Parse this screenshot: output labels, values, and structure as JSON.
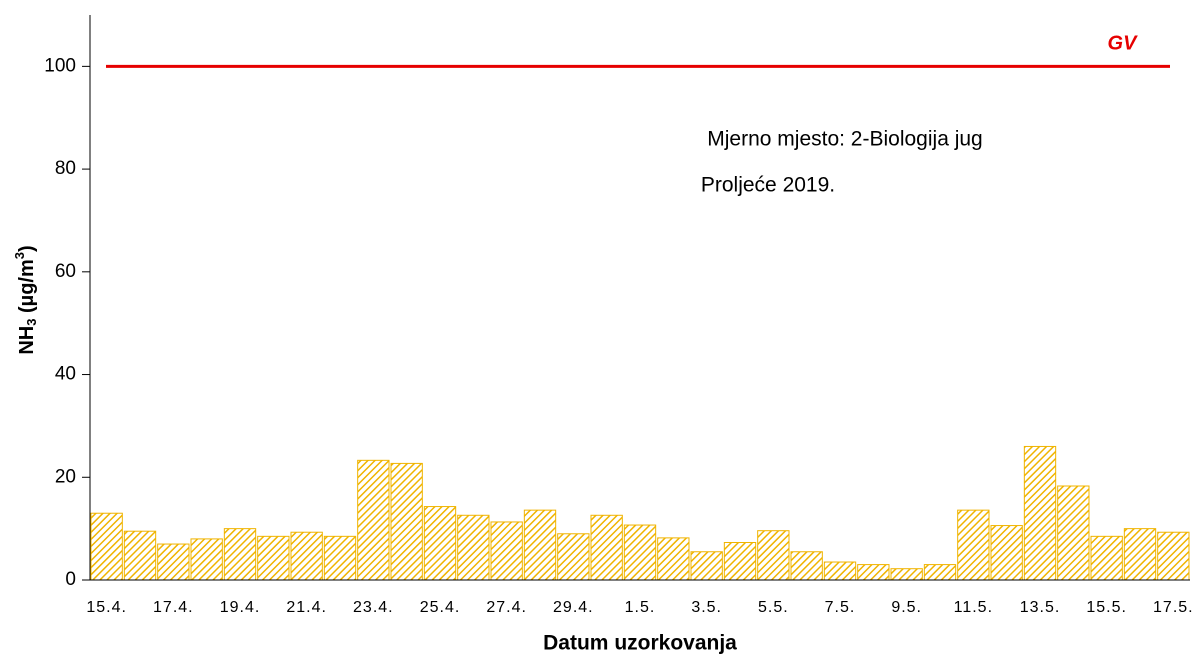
{
  "chart_data": {
    "type": "bar",
    "categories": [
      "15.4.",
      null,
      "17.4.",
      null,
      "19.4.",
      null,
      "21.4.",
      null,
      "23.4.",
      null,
      "25.4.",
      null,
      "27.4.",
      null,
      "29.4.",
      null,
      "1.5.",
      null,
      "3.5.",
      null,
      "5.5.",
      null,
      "7.5.",
      null,
      "9.5.",
      null,
      "11.5.",
      null,
      "13.5.",
      null,
      "15.5.",
      null,
      "17.5."
    ],
    "values": [
      13,
      9.5,
      7,
      8,
      10,
      8.5,
      9.3,
      8.5,
      23.3,
      22.7,
      14.3,
      12.6,
      11.3,
      13.6,
      9,
      12.6,
      10.7,
      8.2,
      5.5,
      7.3,
      9.6,
      5.5,
      3.5,
      3,
      2.2,
      3,
      13.6,
      10.6,
      26,
      18.3,
      8.5,
      10,
      9.3
    ],
    "color": "#f0b400",
    "ylim": [
      0,
      110
    ],
    "yticks": [
      0,
      20,
      40,
      60,
      80,
      100
    ],
    "xlabel": "Datum uzorkovanja",
    "ylabel": [
      "NH",
      "3",
      " (µg/m",
      "3",
      ")"
    ],
    "annotations": [
      "Mjerno mjesto: 2-Biologija jug",
      "Proljeće 2019."
    ],
    "reference_line": {
      "value": 100,
      "label": "GV",
      "color": "#e60000"
    }
  }
}
